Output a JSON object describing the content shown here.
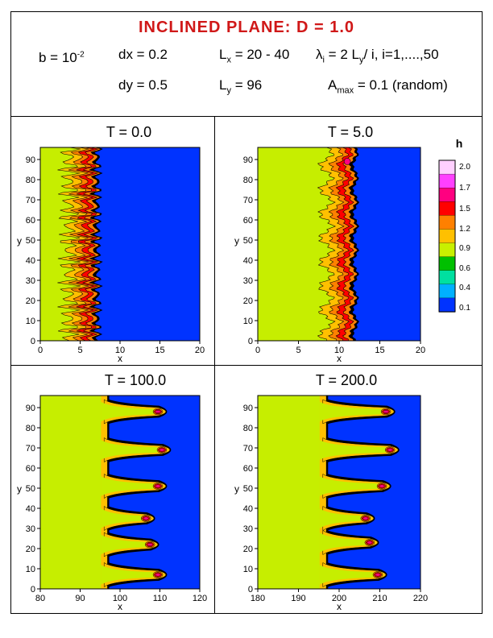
{
  "title": "INCLINED PLANE: D = 1.0",
  "params": {
    "b": "b = 10",
    "b_exp": "-2",
    "dx": "dx = 0.2",
    "lx_pre": "L",
    "lx_sub": "x",
    "lx_val": " = 20 - 40",
    "lambda_sym": "λ",
    "lambda_sub": "i",
    "lambda_val": " = 2 L",
    "lambda_sub2": "y",
    "lambda_tail": "/ i,  i=1,....,50",
    "dy": "dy = 0.5",
    "ly_pre": "L",
    "ly_sub": "y",
    "ly_val": " = 96",
    "amax_pre": "A",
    "amax_sub": "max",
    "amax_val": " = 0.1 (random)"
  },
  "colors": {
    "accent": "#d01818",
    "levels": [
      "#0033ff",
      "#00b0ff",
      "#00e0a0",
      "#00c000",
      "#c8f000",
      "#ffc000",
      "#ff8000",
      "#ff0000",
      "#ff0080",
      "#ff40ff",
      "#ffd0ff"
    ],
    "base": "#c6ee00",
    "front": "#000000"
  },
  "chart_data": [
    {
      "type": "heatmap",
      "title": "T  = 0.0",
      "xlabel": "x",
      "ylabel": "y",
      "xlim": [
        0,
        20
      ],
      "ylim": [
        0,
        96
      ],
      "xticks": [
        "0",
        "5",
        "10",
        "15",
        "20"
      ],
      "yticks": [
        "0",
        "10",
        "20",
        "30",
        "40",
        "50",
        "60",
        "70",
        "80",
        "90"
      ],
      "front_x": 7.2,
      "finger_amp": 0.4,
      "finger_periods": 24,
      "finger_y": [],
      "tip_x": []
    },
    {
      "type": "heatmap",
      "title": "T  = 5.0",
      "xlabel": "x",
      "ylabel": "y",
      "xlim": [
        0,
        20
      ],
      "ylim": [
        0,
        96
      ],
      "xticks": [
        "0",
        "5",
        "10",
        "15",
        "20"
      ],
      "yticks": [
        "0",
        "10",
        "20",
        "30",
        "40",
        "50",
        "60",
        "70",
        "80",
        "90"
      ],
      "front_x": 12.0,
      "finger_amp": 0.3,
      "finger_periods": 8,
      "finger_y": [],
      "tip_x": []
    },
    {
      "type": "heatmap",
      "title": "T  = 100.0",
      "xlabel": "x",
      "ylabel": "y",
      "xlim": [
        80,
        120
      ],
      "ylim": [
        0,
        96
      ],
      "xticks": [
        "80",
        "90",
        "100",
        "110",
        "120"
      ],
      "yticks": [
        "0",
        "10",
        "20",
        "30",
        "40",
        "50",
        "60",
        "70",
        "80",
        "90"
      ],
      "base_x": 96,
      "finger_y": [
        7,
        22,
        35,
        51,
        69,
        88
      ],
      "tip_x": [
        112,
        110,
        109,
        112,
        113,
        112
      ]
    },
    {
      "type": "heatmap",
      "title": "T  = 200.0",
      "xlabel": "x",
      "ylabel": "y",
      "xlim": [
        180,
        220
      ],
      "ylim": [
        0,
        96
      ],
      "xticks": [
        "180",
        "190",
        "200",
        "210",
        "220"
      ],
      "yticks": [
        "0",
        "10",
        "20",
        "30",
        "40",
        "50",
        "60",
        "70",
        "80",
        "90"
      ],
      "base_x": 196,
      "finger_y": [
        7,
        23,
        35,
        51,
        69,
        88
      ],
      "tip_x": [
        212,
        210,
        209,
        213,
        215,
        214
      ]
    }
  ],
  "legend": {
    "title": "h",
    "labels": [
      "2.0",
      "1.7",
      "1.5",
      "1.2",
      "0.9",
      "0.6",
      "0.4",
      "0.1"
    ]
  }
}
